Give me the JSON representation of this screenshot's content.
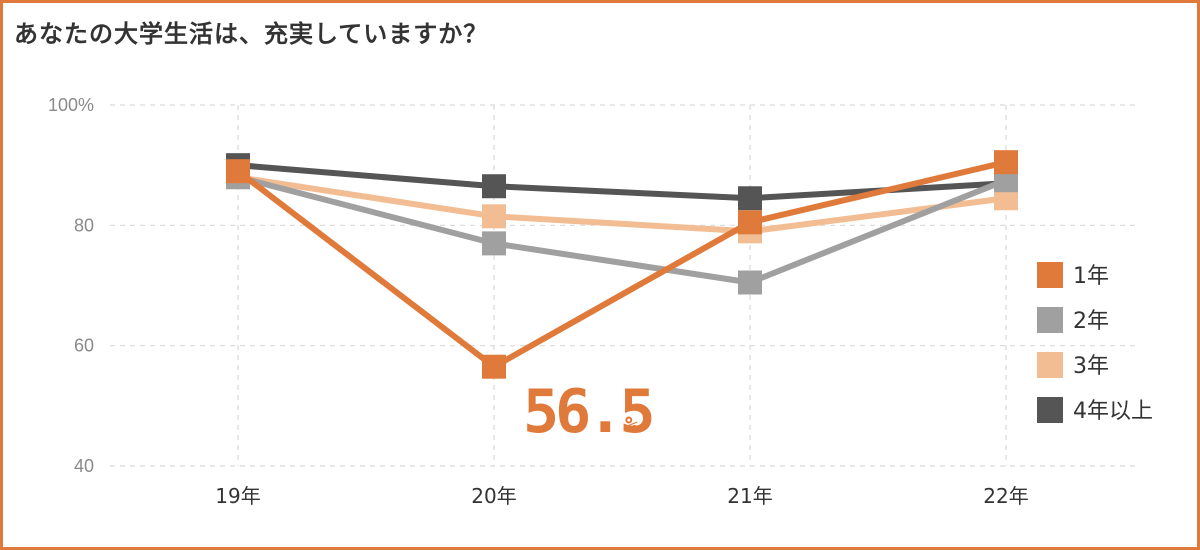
{
  "chart_data": {
    "type": "line",
    "title": "あなたの大学生活は、充実していますか？",
    "categories": [
      "19年",
      "20年",
      "21年",
      "22年"
    ],
    "ylim": [
      40,
      100
    ],
    "yticks": [
      40,
      60,
      80,
      100
    ],
    "ytick_labels": [
      "40",
      "60",
      "80",
      "100%"
    ],
    "grid": true,
    "legend_position": "right",
    "series": [
      {
        "name": "4年以上",
        "color": "#555555",
        "values": [
          90.0,
          86.5,
          84.5,
          87.0
        ]
      },
      {
        "name": "3年",
        "color": "#f2bd93",
        "values": [
          88.0,
          81.5,
          79.0,
          84.5
        ]
      },
      {
        "name": "2年",
        "color": "#a0a0a0",
        "values": [
          88.0,
          77.0,
          70.5,
          87.5
        ]
      },
      {
        "name": "1年",
        "color": "#e07a3b",
        "values": [
          89.0,
          56.5,
          80.5,
          90.5
        ]
      }
    ],
    "legend_order": [
      "1年",
      "2年",
      "3年",
      "4年以上"
    ],
    "annotation": {
      "series": "1年",
      "category": "20年",
      "value": "56.5",
      "unit": "%"
    }
  }
}
